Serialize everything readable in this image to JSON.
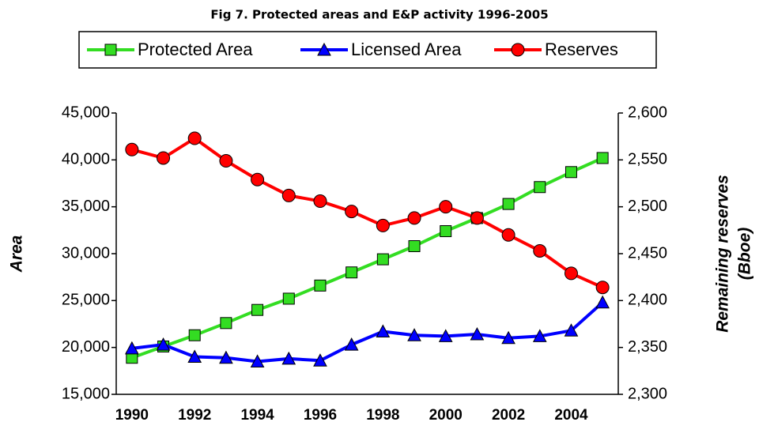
{
  "chart_data": {
    "type": "line",
    "title": "Fig 7. Protected areas and E&P activity 1996-2005",
    "ylabel": "Area",
    "y2label": [
      "Remaining reserves",
      "(Bboe)"
    ],
    "categories": [
      "1990",
      null,
      "1992",
      null,
      "1994",
      null,
      "1996",
      null,
      "1998",
      null,
      "2000",
      null,
      "2002",
      null,
      "2004",
      null
    ],
    "ylim": [
      15000,
      45000
    ],
    "yticks": [
      {
        "value": 15000,
        "label": "15,000"
      },
      {
        "value": 20000,
        "label": "20,000"
      },
      {
        "value": 25000,
        "label": "25,000"
      },
      {
        "value": 30000,
        "label": "30,000"
      },
      {
        "value": 35000,
        "label": "35,000"
      },
      {
        "value": 40000,
        "label": "40,000"
      },
      {
        "value": 45000,
        "label": "45,000"
      }
    ],
    "y2lim": [
      2300,
      2600
    ],
    "y2ticks": [
      {
        "value": 2300,
        "label": "2,300"
      },
      {
        "value": 2350,
        "label": "2,350"
      },
      {
        "value": 2400,
        "label": "2,400"
      },
      {
        "value": 2450,
        "label": "2,450"
      },
      {
        "value": 2500,
        "label": "2,500"
      },
      {
        "value": 2550,
        "label": "2,550"
      },
      {
        "value": 2600,
        "label": "2,600"
      }
    ],
    "grid": false,
    "series": [
      {
        "name": "Protected Area",
        "color": "#33dd22",
        "marker": "square",
        "values": [
          18900,
          20100,
          21300,
          22600,
          24000,
          25200,
          26600,
          28000,
          29400,
          30800,
          32400,
          33800,
          35300,
          37100,
          38700,
          40200
        ]
      },
      {
        "name": "Licensed Area",
        "color": "#0000ff",
        "marker": "triangle",
        "values": [
          19900,
          20300,
          19000,
          18900,
          18500,
          18800,
          18600,
          20300,
          21700,
          21300,
          21200,
          21400,
          21000,
          21200,
          21800,
          24800
        ]
      },
      {
        "name": "Reserves",
        "color": "#ff0000",
        "marker": "circle",
        "axis": "y2",
        "values": [
          2561,
          2552,
          2573,
          2549,
          2529,
          2512,
          2506,
          2495,
          2480,
          2488,
          2500,
          2488,
          2470,
          2453,
          2429,
          2414
        ]
      }
    ]
  }
}
